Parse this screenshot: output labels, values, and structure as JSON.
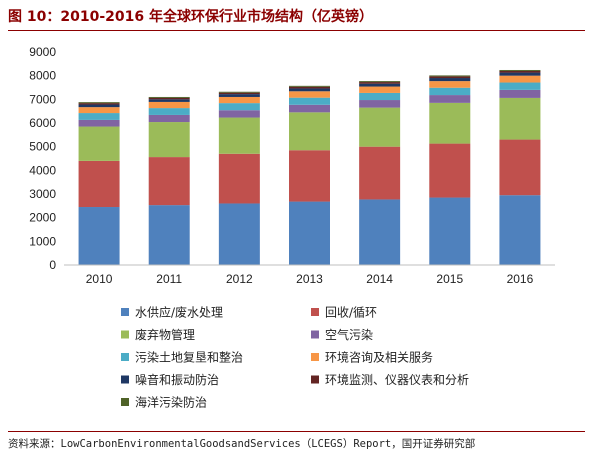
{
  "figure": {
    "title": "图 10：2010-2016 年全球环保行业市场结构（亿英镑）",
    "source": "资料来源：LowCarbonEnvironmentalGoodsandServices（LCEGS）Report，国开证券研究部"
  },
  "chart_data": {
    "type": "bar",
    "stacked": true,
    "title": "图 10：2010-2016 年全球环保行业市场结构（亿英镑）",
    "xlabel": "",
    "ylabel": "",
    "ylim": [
      0,
      9000
    ],
    "yticks": [
      0,
      1000,
      2000,
      3000,
      4000,
      5000,
      6000,
      7000,
      8000,
      9000
    ],
    "grid": false,
    "legend_position": "bottom",
    "categories": [
      "2010",
      "2011",
      "2012",
      "2013",
      "2014",
      "2015",
      "2016"
    ],
    "series": [
      {
        "name": "水供应/废水处理",
        "color": "#4f81bd",
        "values": [
          2450,
          2530,
          2600,
          2680,
          2770,
          2850,
          2950
        ]
      },
      {
        "name": "回收/循环",
        "color": "#c0504d",
        "values": [
          1950,
          2030,
          2100,
          2170,
          2230,
          2280,
          2350
        ]
      },
      {
        "name": "废弃物管理",
        "color": "#9bbb59",
        "values": [
          1450,
          1480,
          1530,
          1600,
          1650,
          1720,
          1760
        ]
      },
      {
        "name": "空气污染",
        "color": "#8064a2",
        "values": [
          280,
          300,
          310,
          320,
          320,
          330,
          340
        ]
      },
      {
        "name": "污染土地复垦和整治",
        "color": "#4bacc6",
        "values": [
          290,
          290,
          300,
          300,
          300,
          310,
          310
        ]
      },
      {
        "name": "环境咨询及相关服务",
        "color": "#f79646",
        "values": [
          250,
          260,
          260,
          270,
          270,
          280,
          290
        ]
      },
      {
        "name": "噪音和振动防治",
        "color": "#1f3864",
        "values": [
          110,
          110,
          120,
          120,
          120,
          130,
          130
        ]
      },
      {
        "name": "环境监测、仪器仪表和分析",
        "color": "#632523",
        "values": [
          60,
          60,
          60,
          70,
          70,
          70,
          70
        ]
      },
      {
        "name": "海洋污染防治",
        "color": "#4f6228",
        "values": [
          40,
          40,
          40,
          40,
          40,
          40,
          40
        ]
      }
    ]
  }
}
